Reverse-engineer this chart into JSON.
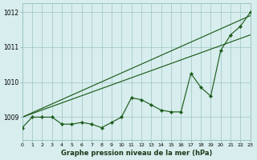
{
  "hours": [
    0,
    1,
    2,
    3,
    4,
    5,
    6,
    7,
    8,
    9,
    10,
    11,
    12,
    13,
    14,
    15,
    16,
    17,
    18,
    19,
    20,
    21,
    22,
    23
  ],
  "pressure_main": [
    1008.7,
    1009.0,
    1009.0,
    1009.0,
    1008.8,
    1008.8,
    1008.85,
    1008.8,
    1008.7,
    1008.85,
    1009.0,
    1009.55,
    1009.5,
    1009.35,
    1009.2,
    1009.15,
    1009.15,
    1010.25,
    1009.85,
    1009.6,
    1010.9,
    1011.35,
    1011.6,
    1012.0
  ],
  "bg_color": "#d8eded",
  "grid_color": "#9dc4c4",
  "line_color": "#1e5e1e",
  "ylabel_ticks": [
    1009,
    1010,
    1011,
    1012
  ],
  "xlabel": "Graphe pression niveau de la mer (hPa)",
  "ylim": [
    1008.35,
    1012.25
  ],
  "xlim": [
    0,
    23
  ]
}
